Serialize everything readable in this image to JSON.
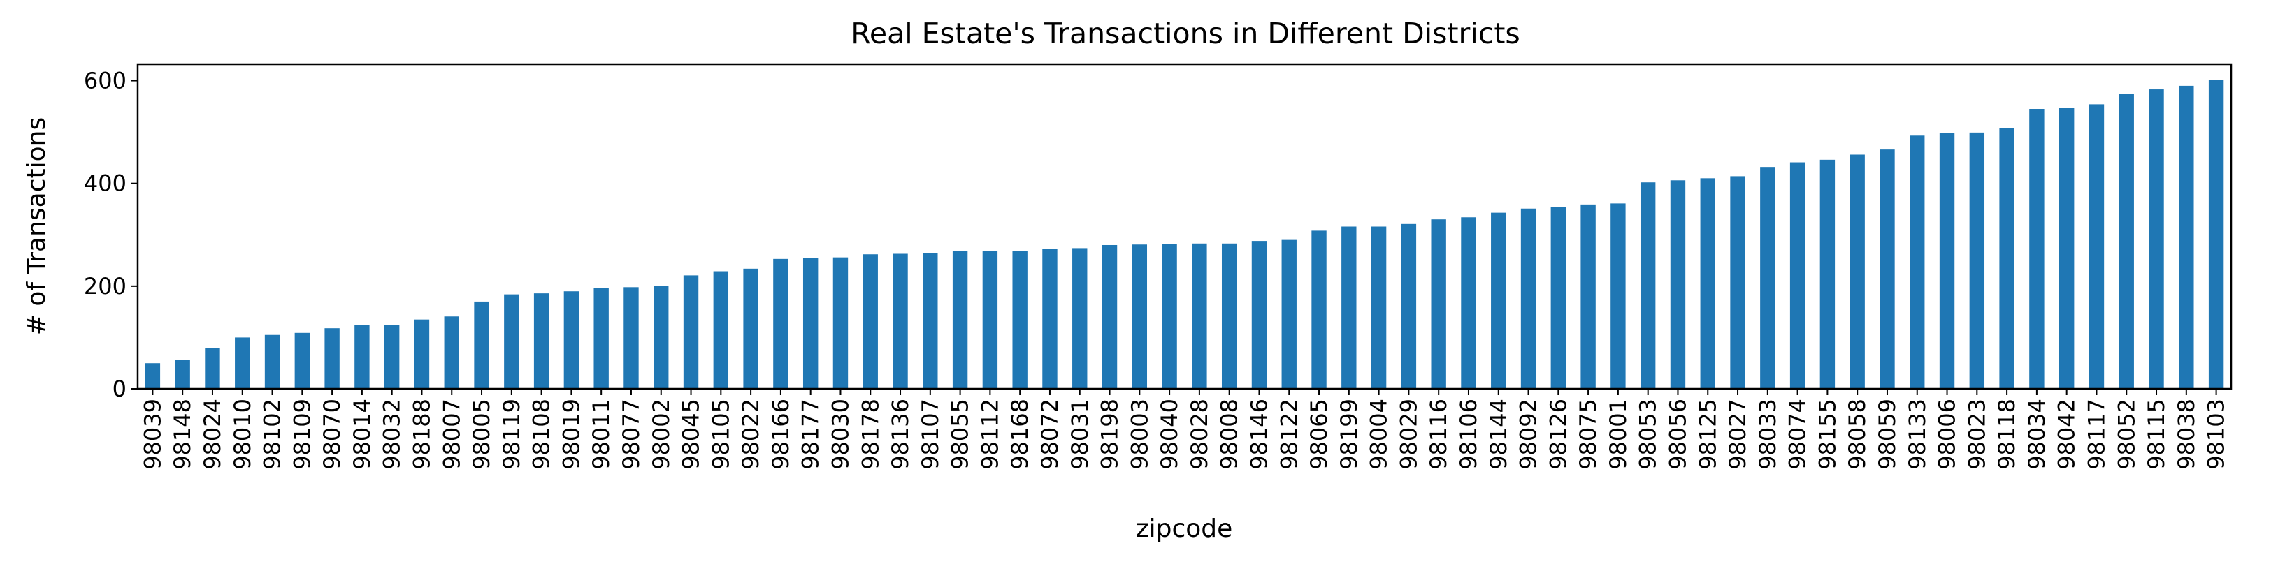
{
  "chart_data": {
    "type": "bar",
    "title": "Real Estate's Transactions in Different Districts",
    "xlabel": "zipcode",
    "ylabel": "# of Transactions",
    "ylim": [
      0,
      632
    ],
    "yticks": [
      0,
      200,
      400,
      600
    ],
    "grid": false,
    "legend": "none",
    "colors": {
      "bar": "#1f77b4"
    },
    "categories": [
      "98039",
      "98148",
      "98024",
      "98010",
      "98102",
      "98109",
      "98070",
      "98014",
      "98032",
      "98188",
      "98007",
      "98005",
      "98119",
      "98108",
      "98019",
      "98011",
      "98077",
      "98002",
      "98045",
      "98105",
      "98022",
      "98166",
      "98177",
      "98030",
      "98178",
      "98136",
      "98107",
      "98055",
      "98112",
      "98168",
      "98072",
      "98031",
      "98198",
      "98003",
      "98040",
      "98028",
      "98008",
      "98146",
      "98122",
      "98065",
      "98199",
      "98004",
      "98029",
      "98116",
      "98106",
      "98144",
      "98092",
      "98126",
      "98075",
      "98001",
      "98053",
      "98056",
      "98125",
      "98027",
      "98033",
      "98074",
      "98155",
      "98058",
      "98059",
      "98133",
      "98006",
      "98023",
      "98118",
      "98034",
      "98042",
      "98117",
      "98052",
      "98115",
      "98038",
      "98103"
    ],
    "values": [
      50,
      57,
      80,
      100,
      105,
      109,
      118,
      124,
      125,
      135,
      141,
      170,
      184,
      186,
      190,
      196,
      198,
      200,
      221,
      229,
      234,
      253,
      255,
      256,
      262,
      263,
      264,
      268,
      268,
      269,
      273,
      274,
      280,
      281,
      282,
      283,
      283,
      288,
      290,
      308,
      316,
      316,
      321,
      330,
      334,
      343,
      351,
      354,
      359,
      361,
      402,
      406,
      410,
      414,
      432,
      441,
      446,
      456,
      466,
      493,
      498,
      499,
      507,
      545,
      547,
      554,
      574,
      583,
      590,
      602
    ]
  }
}
